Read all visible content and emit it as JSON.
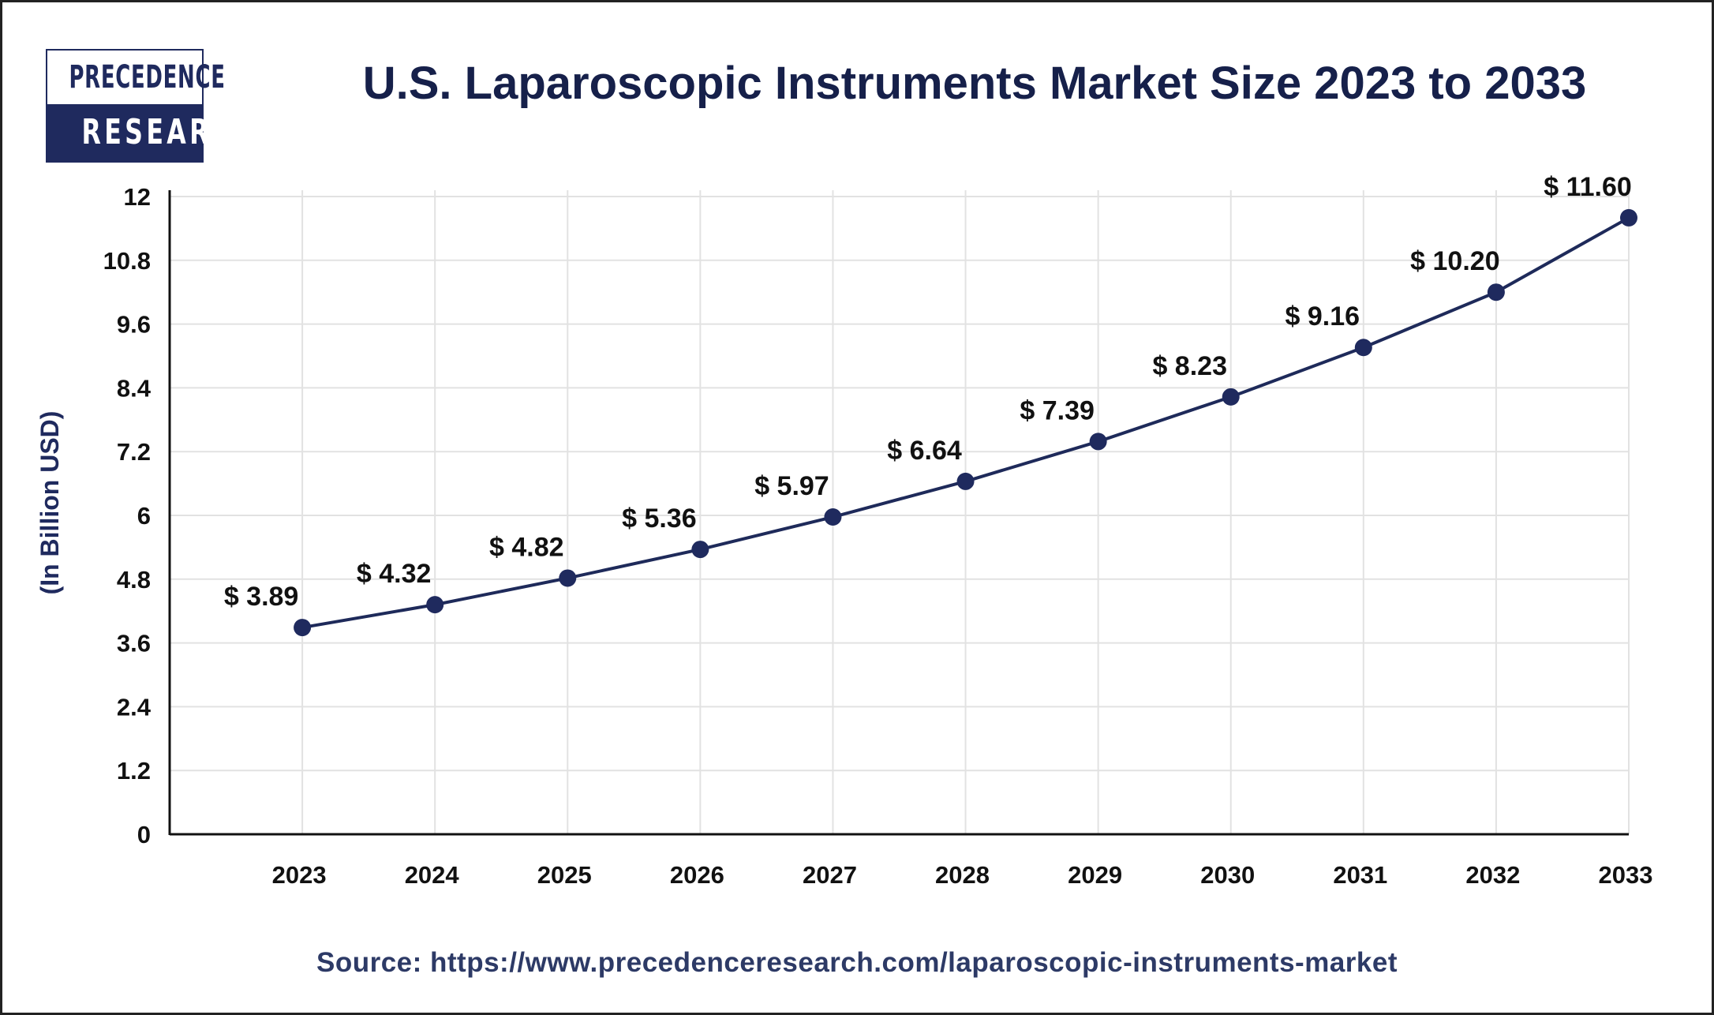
{
  "logo": {
    "line1": "PRECEDENCE",
    "line2": "RESEARCH"
  },
  "title": "U.S. Laparoscopic Instruments Market Size 2023 to 2033",
  "source": "Source: https://www.precedenceresearch.com/laparoscopic-instruments-market",
  "colors": {
    "line": "#1e2a5a",
    "marker": "#1f2a5e",
    "grid": "#e2e2e2",
    "title": "#16204a"
  },
  "chart_data": {
    "type": "line",
    "title": "U.S. Laparoscopic Instruments Market Size 2023 to 2033",
    "xlabel": "",
    "ylabel": "(In Billion USD)",
    "categories": [
      "2023",
      "2024",
      "2025",
      "2026",
      "2027",
      "2028",
      "2029",
      "2030",
      "2031",
      "2032",
      "2033"
    ],
    "values": [
      3.89,
      4.32,
      4.82,
      5.36,
      5.97,
      6.64,
      7.39,
      8.23,
      9.16,
      10.2,
      11.6
    ],
    "data_labels": [
      "$ 3.89",
      "$ 4.32",
      "$ 4.82",
      "$ 5.36",
      "$ 5.97",
      "$ 6.64",
      "$ 7.39",
      "$ 8.23",
      "$ 9.16",
      "$ 10.20",
      "$ 11.60"
    ],
    "yticks": [
      "0",
      "1.2",
      "2.4",
      "3.6",
      "4.8",
      "6",
      "7.2",
      "8.4",
      "9.6",
      "10.8",
      "12"
    ],
    "ylim": [
      0,
      12
    ],
    "grid": true,
    "legend": "none"
  }
}
